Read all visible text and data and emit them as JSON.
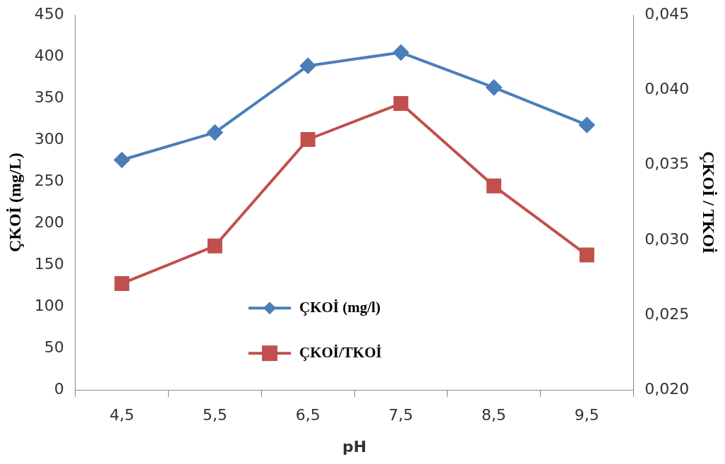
{
  "chart_data": {
    "type": "line",
    "xlabel": "pH",
    "ylabel": "ÇKOİ (mg/L)",
    "y2label": "ÇKOİ / TKOİ",
    "categories": [
      "4,5",
      "5,5",
      "6,5",
      "7,5",
      "8,5",
      "9,5"
    ],
    "series": [
      {
        "name": "ÇKOİ (mg/l)",
        "color": "#4a7ebb",
        "marker": "diamond",
        "values": [
          276,
          309,
          389,
          405,
          363,
          318
        ]
      },
      {
        "name": "ÇKOİ/TKOİ",
        "color": "#c0504d",
        "marker": "square",
        "axis": "y2",
        "values": [
          0.0271,
          0.0296,
          0.0367,
          0.0391,
          0.0336,
          0.029
        ]
      }
    ],
    "ylim": [
      0,
      450
    ],
    "yticks": [
      0,
      50,
      100,
      150,
      200,
      250,
      300,
      350,
      400,
      450
    ],
    "y2lim": [
      0.02,
      0.045
    ],
    "y2ticks": [
      {
        "value": 0.02,
        "label": "0,020"
      },
      {
        "value": 0.025,
        "label": "0,025"
      },
      {
        "value": 0.03,
        "label": "0,030"
      },
      {
        "value": 0.035,
        "label": "0,035"
      },
      {
        "value": 0.04,
        "label": "0,040"
      },
      {
        "value": 0.045,
        "label": "0,045"
      }
    ],
    "grid": false,
    "legend": "bottom",
    "line_style": "solid"
  }
}
